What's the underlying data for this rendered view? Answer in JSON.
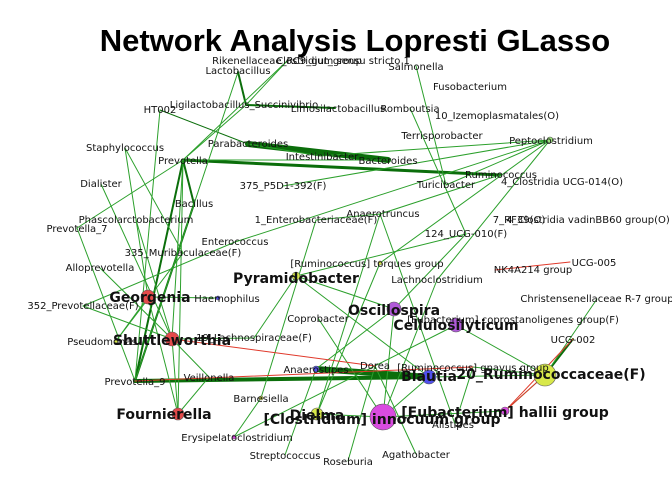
{
  "title": "Network Analysis Lopresti GLasso",
  "colors": {
    "edge_positive": "#2ca02c",
    "edge_strong": "#0b6e0b",
    "edge_negative": "#e0392b",
    "node_red": "#e34a4a",
    "node_purple": "#b05ad8",
    "node_magenta": "#d94ce0",
    "node_yellow": "#d8e84a",
    "node_blue": "#5050ee",
    "node_green": "#9be37a"
  },
  "nodes": [
    {
      "id": "rikenellaceae",
      "label": "Rikenellaceae_RC9_gut_group"
    },
    {
      "id": "clostridium_ss1",
      "label": "Clostridium sensu stricto 1"
    },
    {
      "id": "salmonella",
      "label": "Salmonella"
    },
    {
      "id": "lactobacillus",
      "label": "Lactobacillus"
    },
    {
      "id": "fusobacterium",
      "label": "Fusobacterium"
    },
    {
      "id": "ht002",
      "label": "HT002"
    },
    {
      "id": "ligilacto",
      "label": "Ligilactobacillus_Succinivibrio"
    },
    {
      "id": "limosilacto",
      "label": "Limosilactobacillus"
    },
    {
      "id": "romboutsia",
      "label": "Romboutsia"
    },
    {
      "id": "izemoplasmatales",
      "label": "10_Izemoplasmatales(O)"
    },
    {
      "id": "staphylococcus",
      "label": "Staphylococcus"
    },
    {
      "id": "parabacteroides",
      "label": "Parabacteroides"
    },
    {
      "id": "terrisporobacter",
      "label": "Terrisporobacter"
    },
    {
      "id": "peptoclostridium",
      "label": "Peptoclostridium"
    },
    {
      "id": "intestinibacter",
      "label": "Intestinibacter"
    },
    {
      "id": "bacteroides",
      "label": "Bacteroides"
    },
    {
      "id": "prevotella",
      "label": "Prevotella"
    },
    {
      "id": "ruminococcus",
      "label": "Ruminococcus"
    },
    {
      "id": "dialister",
      "label": "Dialister"
    },
    {
      "id": "p5d1",
      "label": "375_P5D1-392(F)"
    },
    {
      "id": "turicibacter",
      "label": "Turicibacter"
    },
    {
      "id": "clostridia_ucg014",
      "label": "4_Clostridia UCG-014(O)"
    },
    {
      "id": "bacillus",
      "label": "Bacillus"
    },
    {
      "id": "phascolarcto",
      "label": "Phascolarctobacterium"
    },
    {
      "id": "enterobacteriaceae",
      "label": "1_Enterobacteriaceae(F)"
    },
    {
      "id": "anaerotruncus",
      "label": "Anaerotruncus"
    },
    {
      "id": "rf39",
      "label": "7_RF39(O)"
    },
    {
      "id": "clostridia_vadin",
      "label": "4_Clostridia vadinBB60 group(O)"
    },
    {
      "id": "prevotella_7",
      "label": "Prevotella_7"
    },
    {
      "id": "ucg010",
      "label": "124_UCG-010(F)"
    },
    {
      "id": "muribaculaceae",
      "label": "335_Muribaculaceae(F)"
    },
    {
      "id": "enterococcus",
      "label": "Enterococcus"
    },
    {
      "id": "ruminococcus_torques",
      "label": "[Ruminococcus] torques group"
    },
    {
      "id": "ucg005",
      "label": "UCG-005"
    },
    {
      "id": "alloprevotella",
      "label": "Alloprevotella"
    },
    {
      "id": "pyramidobacter",
      "label": "Pyramidobacter"
    },
    {
      "id": "nk4a214",
      "label": "NK4A214 group"
    },
    {
      "id": "lachnoclostridium",
      "label": "Lachnoclostridium"
    },
    {
      "id": "georgenia",
      "label": "Georgenia"
    },
    {
      "id": "haemophilus",
      "label": "Haemophilus"
    },
    {
      "id": "christensenellaceae",
      "label": "Christensenellaceae R-7 group"
    },
    {
      "id": "prevotellaceae",
      "label": "352_Prevotellaceae(F)"
    },
    {
      "id": "oscillospira",
      "label": "Oscillospira"
    },
    {
      "id": "coprobacter",
      "label": "Coprobacter"
    },
    {
      "id": "eubacterium_copro",
      "label": "[Eubacterium] coprostanoligenes group(F)"
    },
    {
      "id": "cellulosilyticum",
      "label": "Cellulosilyticum"
    },
    {
      "id": "pseudomonas",
      "label": "Pseudomonas"
    },
    {
      "id": "shuttleworthia",
      "label": "Shuttleworthia"
    },
    {
      "id": "lachnospiraceae",
      "label": "19_Lachnospiraceae(F)"
    },
    {
      "id": "ucg002",
      "label": "UCG-002"
    },
    {
      "id": "dorea",
      "label": "Dorea"
    },
    {
      "id": "ruminococcus_gnavus",
      "label": "[Ruminococcus] gnavus group"
    },
    {
      "id": "anaerostipes",
      "label": "Anaerostipes"
    },
    {
      "id": "blautia",
      "label": "Blautia"
    },
    {
      "id": "ruminococcaceae",
      "label": "20_Ruminococcaceae(F)"
    },
    {
      "id": "veillonella",
      "label": "Veillonella"
    },
    {
      "id": "prevotella_9",
      "label": "Prevotella_9"
    },
    {
      "id": "barnesiella",
      "label": "Barnesiella"
    },
    {
      "id": "fournierella",
      "label": "Fournierella"
    },
    {
      "id": "dielma",
      "label": "Dielma"
    },
    {
      "id": "clostridium_innocuum",
      "label": "[Clostridium] innocuum group"
    },
    {
      "id": "eubacterium_hallii",
      "label": "[Eubacterium] hallii group"
    },
    {
      "id": "alistipes",
      "label": "Alistipes"
    },
    {
      "id": "erysipelato",
      "label": "Erysipelatoclostridium"
    },
    {
      "id": "streptococcus",
      "label": "Streptococcus"
    },
    {
      "id": "roseburia",
      "label": "Roseburia"
    },
    {
      "id": "agathobacter",
      "label": "Agathobacter"
    }
  ]
}
